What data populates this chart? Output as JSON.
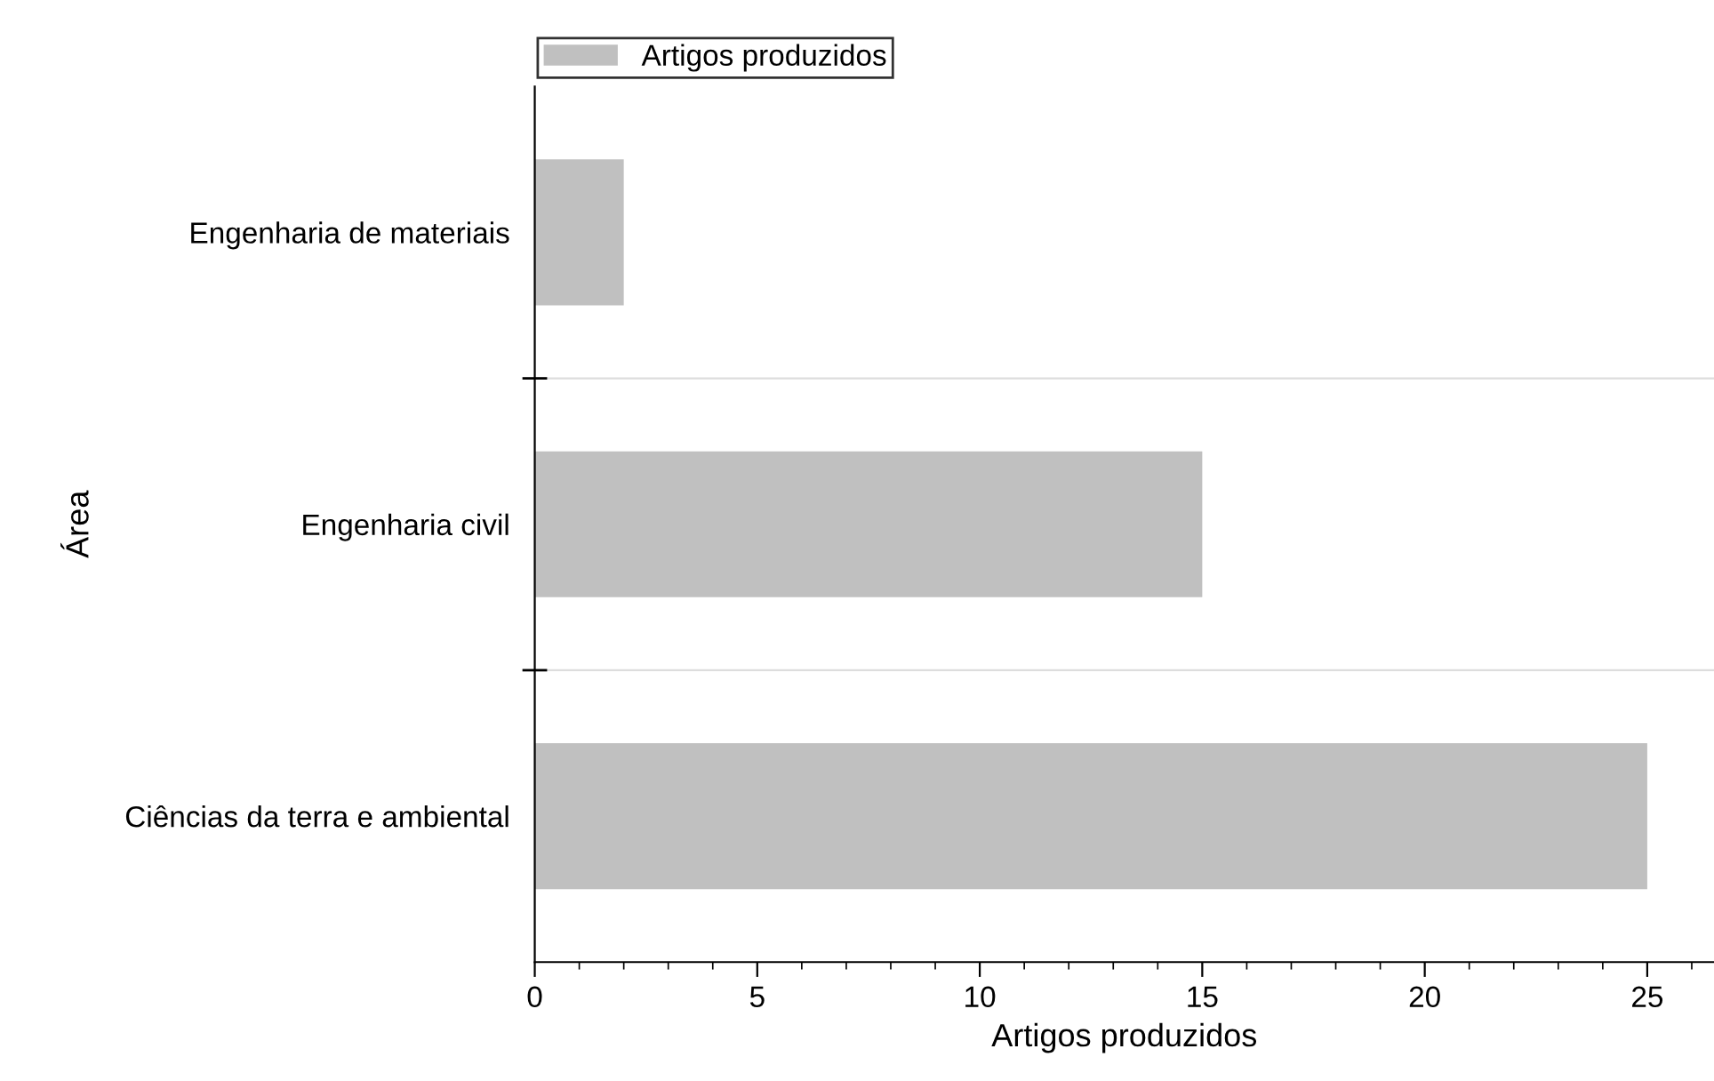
{
  "chart_data": {
    "type": "bar",
    "orientation": "horizontal",
    "xlabel": "Artigos produzidos",
    "ylabel": "Área",
    "categories": [
      "Engenharia de materiais",
      "Engenharia civil",
      "Ciências da terra e ambiental"
    ],
    "series": [
      {
        "name": "Artigos produzidos",
        "color": "#c0c0c0",
        "values": [
          2,
          15,
          25
        ]
      }
    ],
    "xlim": [
      0,
      26.5
    ],
    "xticks": [
      0,
      5,
      10,
      15,
      20,
      25
    ],
    "grid": "y",
    "legend": "top left"
  }
}
